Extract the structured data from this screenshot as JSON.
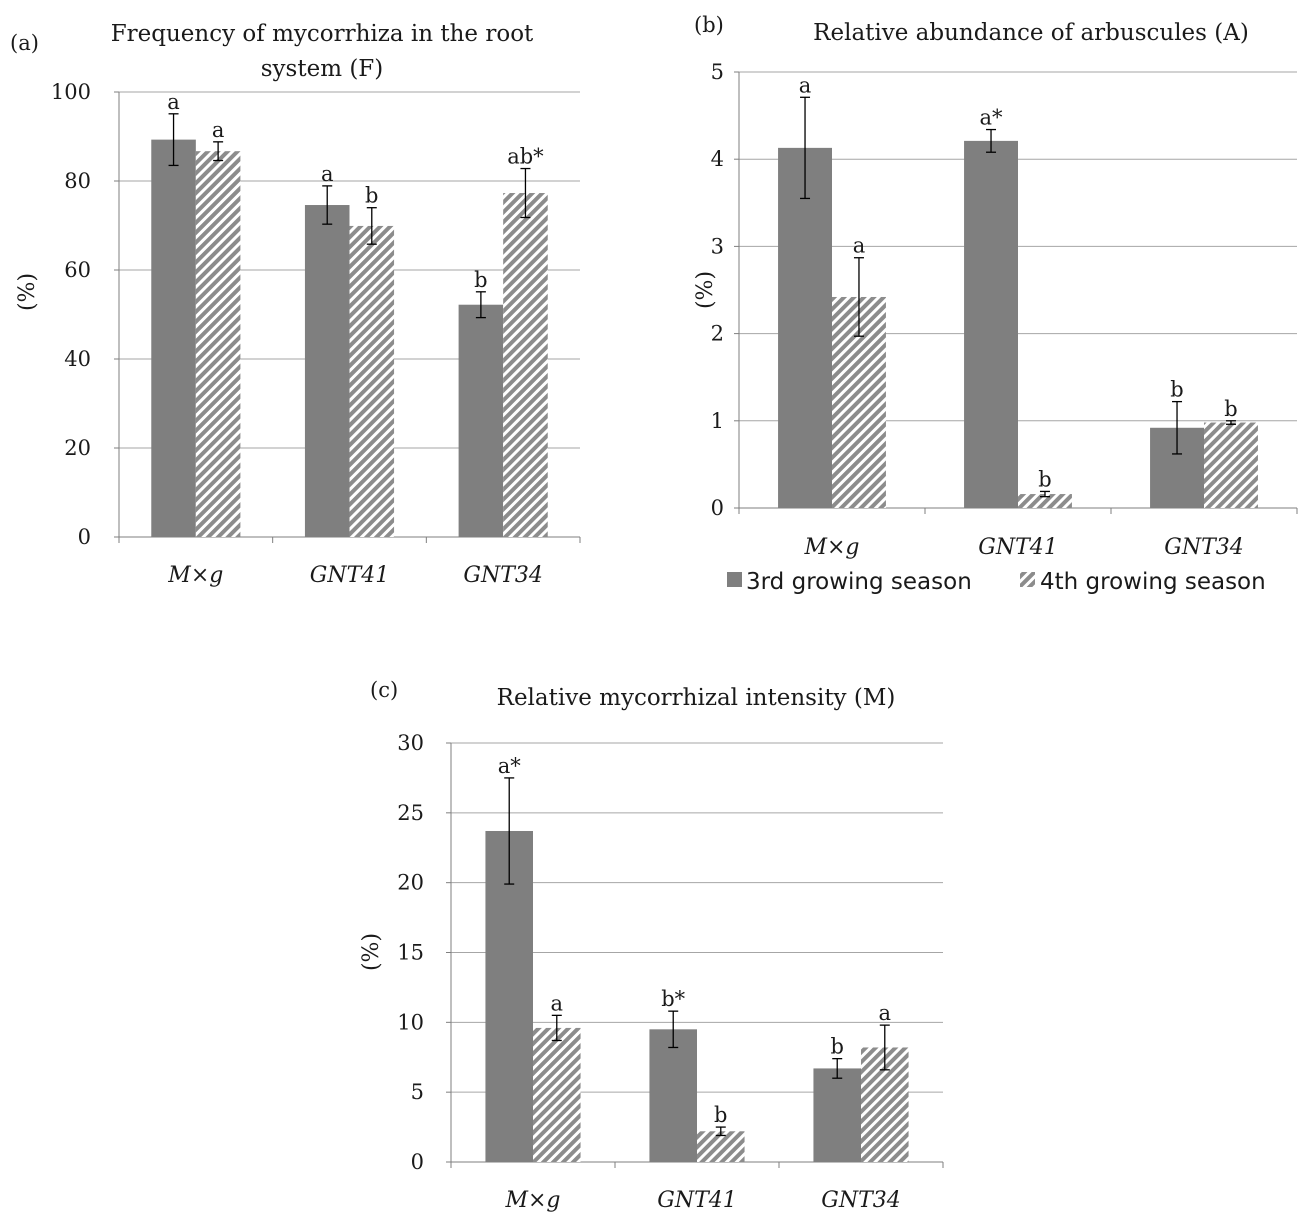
{
  "chart_data": [
    {
      "panel": "(a)",
      "type": "bar",
      "title": "Frequency of mycorrhiza in the root system (F)",
      "title_lines": [
        "Frequency of mycorrhiza in the root",
        "system (F)"
      ],
      "ylabel": "(%)",
      "ylim": [
        0,
        100
      ],
      "yticks": [
        0,
        20,
        40,
        60,
        80,
        100
      ],
      "grid": true,
      "categories": [
        "M×g",
        "GNT41",
        "GNT34"
      ],
      "series": [
        {
          "name": "3rd growing season",
          "values": [
            89.3,
            74.6,
            52.2
          ],
          "errors": [
            5.8,
            4.3,
            2.9
          ],
          "labels": [
            "a",
            "a",
            "b"
          ]
        },
        {
          "name": "4th growing season",
          "values": [
            86.7,
            69.9,
            77.3
          ],
          "errors": [
            2.1,
            4.1,
            5.5
          ],
          "labels": [
            "a",
            "b",
            "ab*"
          ]
        }
      ]
    },
    {
      "panel": "(b)",
      "type": "bar",
      "title": "Relative abundance of arbuscules (A)",
      "title_lines": [
        "Relative abundance of arbuscules (A)"
      ],
      "ylabel": "(%)",
      "ylim": [
        0,
        5
      ],
      "yticks": [
        0,
        1,
        2,
        3,
        4,
        5
      ],
      "grid": true,
      "legend": "bottom",
      "categories": [
        "M×g",
        "GNT41",
        "GNT34"
      ],
      "series": [
        {
          "name": "3rd growing season",
          "values": [
            4.13,
            4.21,
            0.92
          ],
          "errors": [
            0.58,
            0.13,
            0.3
          ],
          "labels": [
            "a",
            "a*",
            "b"
          ]
        },
        {
          "name": "4th growing season",
          "values": [
            2.42,
            0.16,
            0.98
          ],
          "errors": [
            0.45,
            0.03,
            0.02
          ],
          "labels": [
            "a",
            "b",
            "b"
          ]
        }
      ]
    },
    {
      "panel": "(c)",
      "type": "bar",
      "title": "Relative mycorrhizal intensity (M)",
      "title_lines": [
        "Relative mycorrhizal intensity (M)"
      ],
      "ylabel": "(%)",
      "ylim": [
        0,
        30
      ],
      "yticks": [
        0,
        5,
        10,
        15,
        20,
        25,
        30
      ],
      "grid": true,
      "categories": [
        "M×g",
        "GNT41",
        "GNT34"
      ],
      "series": [
        {
          "name": "3rd growing season",
          "values": [
            23.7,
            9.5,
            6.7
          ],
          "errors": [
            3.8,
            1.3,
            0.7
          ],
          "labels": [
            "a*",
            "b*",
            "b"
          ]
        },
        {
          "name": "4th growing season",
          "values": [
            9.6,
            2.2,
            8.2
          ],
          "errors": [
            0.9,
            0.3,
            1.6
          ],
          "labels": [
            "a",
            "b",
            "a"
          ]
        }
      ]
    }
  ],
  "colors": {
    "series1": "#7f7f7f",
    "series2_stripe": "#8c8c8c",
    "grid": "#a6a6a6",
    "axis": "#7f7f7f",
    "error_bar": "#000000"
  }
}
